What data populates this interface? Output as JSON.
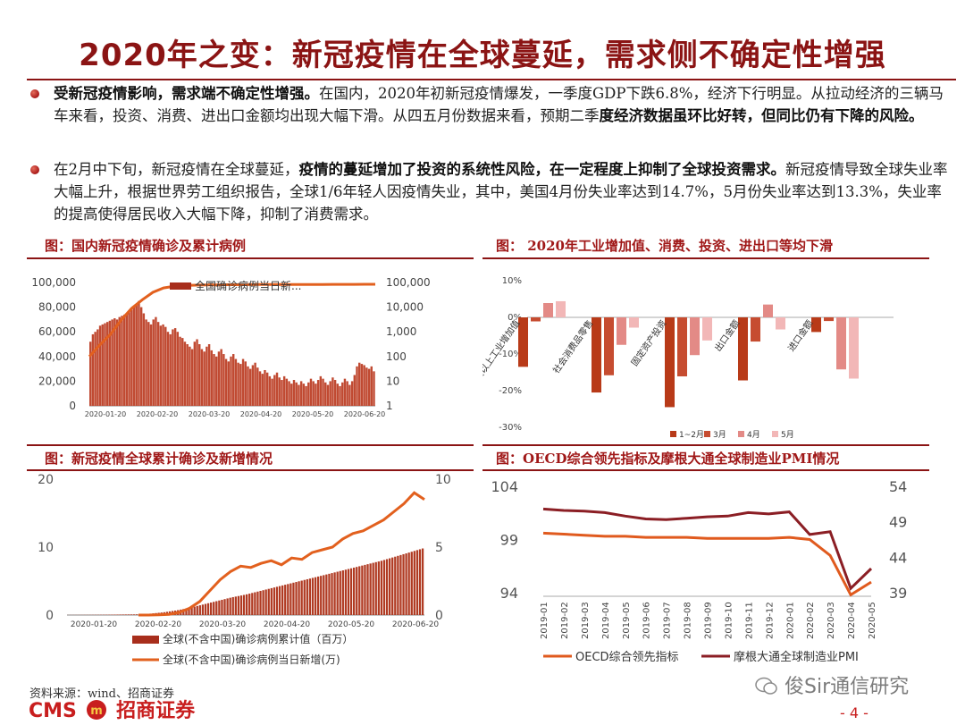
{
  "title": "2020年之变：新冠疫情在全球蔓延，需求侧不确定性增强",
  "bullets": [
    {
      "lead": "受新冠疫情影响，需求端不确定性增强。",
      "body1": "在国内，2020年初新冠疫情爆发，一季度GDP下跌6.8%，经济下行明显。从拉动经济的三辆马车来看，投资、消费、进出口金额均出现大幅下滑。从四五月份数据来看，预期二季",
      "bold_tail": "度经济数据虽环比好转，但同比仍有下降的风险。"
    },
    {
      "p1": "在2月中下旬，新冠疫情在全球蔓延，",
      "bold1": "疫情的蔓延增加了投资的系统性风险，在一定程度上抑制了全球投资需求。",
      "p2": "新冠疫情导致全球失业率大幅上升，根据世界劳工组织报告，全球1/6年轻人因疫情失业，其中，美国4月份失业率达到14.7%，5月份失业率达到13.3%，失业率的提高使得居民收入大幅下降，抑制了消费需求。"
    }
  ],
  "figures": {
    "fig1_title": "图：国内新冠疫情确诊及累计病例",
    "fig2_title": "图：   2020年工业增加值、消费、投资、进出口等均下滑",
    "fig3_title": "图：新冠疫情全球累计确诊及新增情况",
    "fig4_title": "图：OECD综合领先指标及摩根大通全球制造业PMI情况"
  },
  "chart_data": [
    {
      "type": "bar",
      "legend": [
        "全国确诊病例当日新..."
      ],
      "y_left_ticks": [
        "100,000",
        "80,000",
        "60,000",
        "40,000",
        "20,000",
        "0"
      ],
      "y_right_ticks": [
        "100,000",
        "10,000",
        "1,000",
        "100",
        "10",
        "1"
      ],
      "x_ticks": [
        "2020-01-20",
        "2020-02-20",
        "2020-03-20",
        "2020-04-20",
        "2020-05-20",
        "2020-06-20"
      ],
      "ylim": [
        0,
        100000
      ],
      "right_scale": "log",
      "daily": [
        52000,
        58000,
        60000,
        62000,
        65000,
        66000,
        67000,
        68000,
        69000,
        70000,
        71000,
        70000,
        72000,
        73000,
        74000,
        75000,
        76000,
        78000,
        80000,
        82000,
        85000,
        80000,
        75000,
        70000,
        68000,
        66000,
        70000,
        72000,
        68000,
        65000,
        66000,
        64000,
        60000,
        58000,
        62000,
        63000,
        60000,
        56000,
        55000,
        52000,
        50000,
        48000,
        46000,
        52000,
        54000,
        50000,
        46000,
        44000,
        48000,
        50000,
        45000,
        42000,
        40000,
        44000,
        46000,
        42000,
        38000,
        36000,
        40000,
        42000,
        38000,
        35000,
        34000,
        38000,
        36000,
        32000,
        30000,
        33000,
        35000,
        31000,
        28000,
        26000,
        29000,
        27000,
        24000,
        22000,
        25000,
        27000,
        23000,
        21000,
        24000,
        22000,
        20000,
        18000,
        21000,
        19000,
        17000,
        20000,
        18000,
        16000,
        19000,
        22000,
        20000,
        18000,
        21000,
        24000,
        22000,
        19000,
        17000,
        20000,
        23000,
        21000,
        18000,
        16000,
        19000,
        22000,
        20000,
        17000,
        20000,
        25000,
        32000,
        35000,
        34000,
        33000,
        31000,
        30000,
        32000,
        28000
      ],
      "cumulative_log": [
        100,
        300,
        800,
        3000,
        9000,
        20000,
        40000,
        60000,
        70000,
        75000,
        78000,
        79000,
        80000,
        81000,
        81500,
        82000,
        82500,
        82800,
        83000,
        83200,
        83300,
        83400,
        83500,
        83600,
        84000,
        84200,
        84500,
        84800
      ]
    },
    {
      "type": "bar",
      "categories": [
        "规模以上工业增加值",
        "社会消费品零售",
        "固定资产投资",
        "出口金额",
        "进口金额"
      ],
      "series": [
        {
          "name": "1~2月",
          "values": [
            -13.5,
            -20.5,
            -24.5,
            -17.2,
            -4.0
          ],
          "color": "#b83a18"
        },
        {
          "name": "3月",
          "values": [
            -1.1,
            -15.8,
            -16.1,
            -6.6,
            -1.0
          ],
          "color": "#c64c30"
        },
        {
          "name": "4月",
          "values": [
            3.9,
            -7.5,
            -10.3,
            3.5,
            -14.2
          ],
          "color": "#e38a86"
        },
        {
          "name": "5月",
          "values": [
            4.4,
            -2.8,
            -6.3,
            -3.3,
            -16.7
          ],
          "color": "#f2b7b7"
        }
      ],
      "y_ticks": [
        "10%",
        "0%",
        "-10%",
        "-20%",
        "-30%"
      ],
      "ylim": [
        -30,
        10
      ]
    },
    {
      "type": "bar",
      "legend": [
        "全球(不含中国)确诊病例累计值（百万）",
        "全球(不含中国)确诊病例当日新增(万)"
      ],
      "y_left_ticks": [
        "20",
        "10",
        "0"
      ],
      "y_right_ticks": [
        "10",
        "5",
        "0"
      ],
      "x_ticks": [
        "2020-01-20",
        "2020-02-20",
        "2020-03-20",
        "2020-04-20",
        "2020-05-20",
        "2020-06-20"
      ],
      "left_ylim": [
        0,
        20
      ],
      "right_ylim": [
        0,
        10
      ],
      "cumulative_million": [
        0.01,
        0.02,
        0.03,
        0.05,
        0.08,
        0.1,
        0.2,
        0.4,
        0.7,
        1.1,
        1.6,
        2.1,
        2.6,
        3.0,
        3.5,
        4.0,
        4.5,
        5.0,
        5.5,
        6.0,
        6.5,
        7.0,
        7.5,
        8.0,
        8.6,
        9.2,
        9.8
      ],
      "daily_wan": [
        0.0,
        0.0,
        0.01,
        0.05,
        0.2,
        0.5,
        1.0,
        1.8,
        2.6,
        3.2,
        3.6,
        3.5,
        3.8,
        4.0,
        3.7,
        4.2,
        4.1,
        4.6,
        4.8,
        5.0,
        5.6,
        6.0,
        6.2,
        6.6,
        7.0,
        7.6,
        8.2,
        9.0,
        8.5
      ]
    },
    {
      "type": "line",
      "x": [
        "2019-01",
        "2019-02",
        "2019-03",
        "2019-04",
        "2019-05",
        "2019-06",
        "2019-07",
        "2019-08",
        "2019-09",
        "2019-10",
        "2019-11",
        "2019-12",
        "2020-01",
        "2020-02",
        "2020-03",
        "2020-04",
        "2020-05"
      ],
      "y_left_ticks": [
        "104",
        "99",
        "94"
      ],
      "y_right_ticks": [
        "54",
        "49",
        "44",
        "39"
      ],
      "left_ylim": [
        94,
        104
      ],
      "right_ylim": [
        39,
        54
      ],
      "series": [
        {
          "name": "OECD综合领先指标",
          "axis": "left",
          "color": "#e05a1e",
          "values": [
            99.6,
            99.5,
            99.4,
            99.3,
            99.3,
            99.2,
            99.2,
            99.2,
            99.1,
            99.1,
            99.1,
            99.1,
            99.2,
            99.0,
            97.5,
            93.8,
            95.0
          ]
        },
        {
          "name": "摩根大通全球制造业PMI",
          "axis": "right",
          "color": "#8b1e24",
          "values": [
            50.8,
            50.6,
            50.5,
            50.3,
            49.8,
            49.4,
            49.3,
            49.5,
            49.7,
            49.8,
            50.3,
            50.1,
            50.4,
            47.2,
            47.6,
            39.6,
            42.4
          ]
        }
      ]
    }
  ],
  "footer": {
    "source": "资料来源：wind、招商证券",
    "logo_en": "CMS",
    "logo_cn": "招商证券",
    "page": "- 4 -",
    "watermark": "俊Sir通信研究"
  },
  "colors": {
    "brand_red": "#8b1414",
    "bar_red": "#b83a18",
    "line_orange": "#e05a1e"
  }
}
